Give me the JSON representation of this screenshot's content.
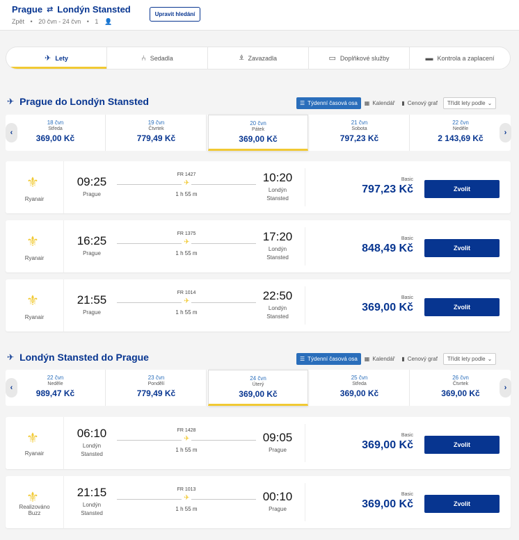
{
  "header": {
    "origin": "Prague",
    "destination": "Londýn Stansted",
    "trip_type": "Zpět",
    "dates": "20 čvn - 24 čvn",
    "passengers": "1",
    "edit_button": "Upravit hledání"
  },
  "stepper": [
    {
      "label": "Lety",
      "icon": "plane-icon",
      "glyph": "✈"
    },
    {
      "label": "Sedadla",
      "icon": "seat-icon",
      "glyph": "⑃"
    },
    {
      "label": "Zavazadla",
      "icon": "luggage-icon",
      "glyph": "⍎"
    },
    {
      "label": "Doplňkové služby",
      "icon": "bus-icon",
      "glyph": "▭"
    },
    {
      "label": "Kontrola a zaplacení",
      "icon": "card-icon",
      "glyph": "▬"
    }
  ],
  "view_tabs": {
    "weekly": "Týdenní časová osa",
    "calendar": "Kalendář",
    "price_chart": "Cenový graf",
    "sort": "Třídit lety podle"
  },
  "outbound": {
    "title": "Prague do Londýn Stansted",
    "dates": [
      {
        "date": "18 čvn",
        "day": "Středa",
        "price": "369,00 Kč"
      },
      {
        "date": "19 čvn",
        "day": "Čtvrtek",
        "price": "779,49 Kč"
      },
      {
        "date": "20 čvn",
        "day": "Pátek",
        "price": "369,00 Kč"
      },
      {
        "date": "21 čvn",
        "day": "Sobota",
        "price": "797,23 Kč"
      },
      {
        "date": "22 čvn",
        "day": "Neděle",
        "price": "2 143,69 Kč"
      }
    ],
    "flights": [
      {
        "airline": "Ryanair",
        "dep_time": "09:25",
        "dep_city": "Prague",
        "flight_no": "FR 1427",
        "duration": "1 h 55 m",
        "arr_time": "10:20",
        "arr_city_1": "Londýn",
        "arr_city_2": "Stansted",
        "fare_class": "Basic",
        "price": "797,23 Kč",
        "select": "Zvolit"
      },
      {
        "airline": "Ryanair",
        "dep_time": "16:25",
        "dep_city": "Prague",
        "flight_no": "FR 1375",
        "duration": "1 h 55 m",
        "arr_time": "17:20",
        "arr_city_1": "Londýn",
        "arr_city_2": "Stansted",
        "fare_class": "Basic",
        "price": "848,49 Kč",
        "select": "Zvolit"
      },
      {
        "airline": "Ryanair",
        "dep_time": "21:55",
        "dep_city": "Prague",
        "flight_no": "FR 1014",
        "duration": "1 h 55 m",
        "arr_time": "22:50",
        "arr_city_1": "Londýn",
        "arr_city_2": "Stansted",
        "fare_class": "Basic",
        "price": "369,00 Kč",
        "select": "Zvolit"
      }
    ]
  },
  "inbound": {
    "title": "Londýn Stansted do Prague",
    "dates": [
      {
        "date": "22 čvn",
        "day": "Neděle",
        "price": "989,47 Kč"
      },
      {
        "date": "23 čvn",
        "day": "Pondělí",
        "price": "779,49 Kč"
      },
      {
        "date": "24 čvn",
        "day": "Úterý",
        "price": "369,00 Kč"
      },
      {
        "date": "25 čvn",
        "day": "Středa",
        "price": "369,00 Kč"
      },
      {
        "date": "26 čvn",
        "day": "Čtvrtek",
        "price": "369,00 Kč"
      }
    ],
    "flights": [
      {
        "airline_1": "Ryanair",
        "airline_2": "",
        "dep_time": "06:10",
        "dep_city_1": "Londýn",
        "dep_city_2": "Stansted",
        "flight_no": "FR 1428",
        "duration": "1 h 55 m",
        "arr_time": "09:05",
        "arr_city": "Prague",
        "fare_class": "Basic",
        "price": "369,00 Kč",
        "select": "Zvolit"
      },
      {
        "airline_1": "Realizováno",
        "airline_2": "Buzz",
        "dep_time": "21:15",
        "dep_city_1": "Londýn",
        "dep_city_2": "Stansted",
        "flight_no": "FR 1013",
        "duration": "1 h 55 m",
        "arr_time": "00:10",
        "arr_city": "Prague",
        "fare_class": "Basic",
        "price": "369,00 Kč",
        "select": "Zvolit"
      }
    ]
  },
  "colors": {
    "brand": "#073590",
    "accent": "#f1c933",
    "tab_active": "#2a6ebb"
  }
}
